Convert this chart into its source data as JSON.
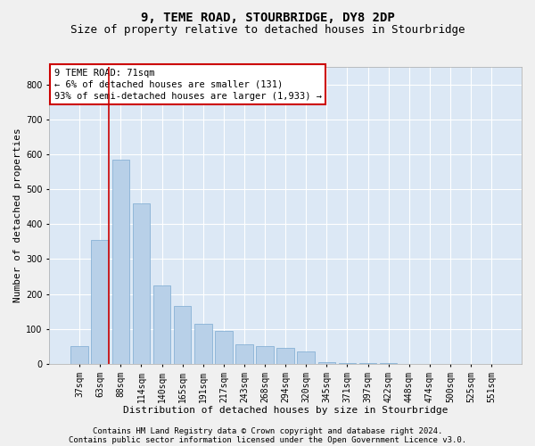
{
  "title": "9, TEME ROAD, STOURBRIDGE, DY8 2DP",
  "subtitle": "Size of property relative to detached houses in Stourbridge",
  "xlabel": "Distribution of detached houses by size in Stourbridge",
  "ylabel": "Number of detached properties",
  "categories": [
    "37sqm",
    "63sqm",
    "88sqm",
    "114sqm",
    "140sqm",
    "165sqm",
    "191sqm",
    "217sqm",
    "243sqm",
    "268sqm",
    "294sqm",
    "320sqm",
    "345sqm",
    "371sqm",
    "397sqm",
    "422sqm",
    "448sqm",
    "474sqm",
    "500sqm",
    "525sqm",
    "551sqm"
  ],
  "values": [
    50,
    355,
    585,
    460,
    225,
    165,
    115,
    95,
    55,
    50,
    45,
    35,
    5,
    3,
    3,
    2,
    1,
    1,
    1,
    1,
    1
  ],
  "bar_color": "#b8d0e8",
  "bar_edge_color": "#7aaad0",
  "background_color": "#dce8f5",
  "grid_color": "#ffffff",
  "vline_color": "#cc0000",
  "annotation_text": "9 TEME ROAD: 71sqm\n← 6% of detached houses are smaller (131)\n93% of semi-detached houses are larger (1,933) →",
  "annotation_box_facecolor": "#ffffff",
  "annotation_box_edgecolor": "#cc0000",
  "footnote1": "Contains HM Land Registry data © Crown copyright and database right 2024.",
  "footnote2": "Contains public sector information licensed under the Open Government Licence v3.0.",
  "ylim": [
    0,
    850
  ],
  "yticks": [
    0,
    100,
    200,
    300,
    400,
    500,
    600,
    700,
    800
  ],
  "title_fontsize": 10,
  "subtitle_fontsize": 9,
  "xlabel_fontsize": 8,
  "ylabel_fontsize": 8,
  "tick_fontsize": 7,
  "annotation_fontsize": 7.5,
  "footnote_fontsize": 6.5,
  "fig_facecolor": "#f0f0f0"
}
